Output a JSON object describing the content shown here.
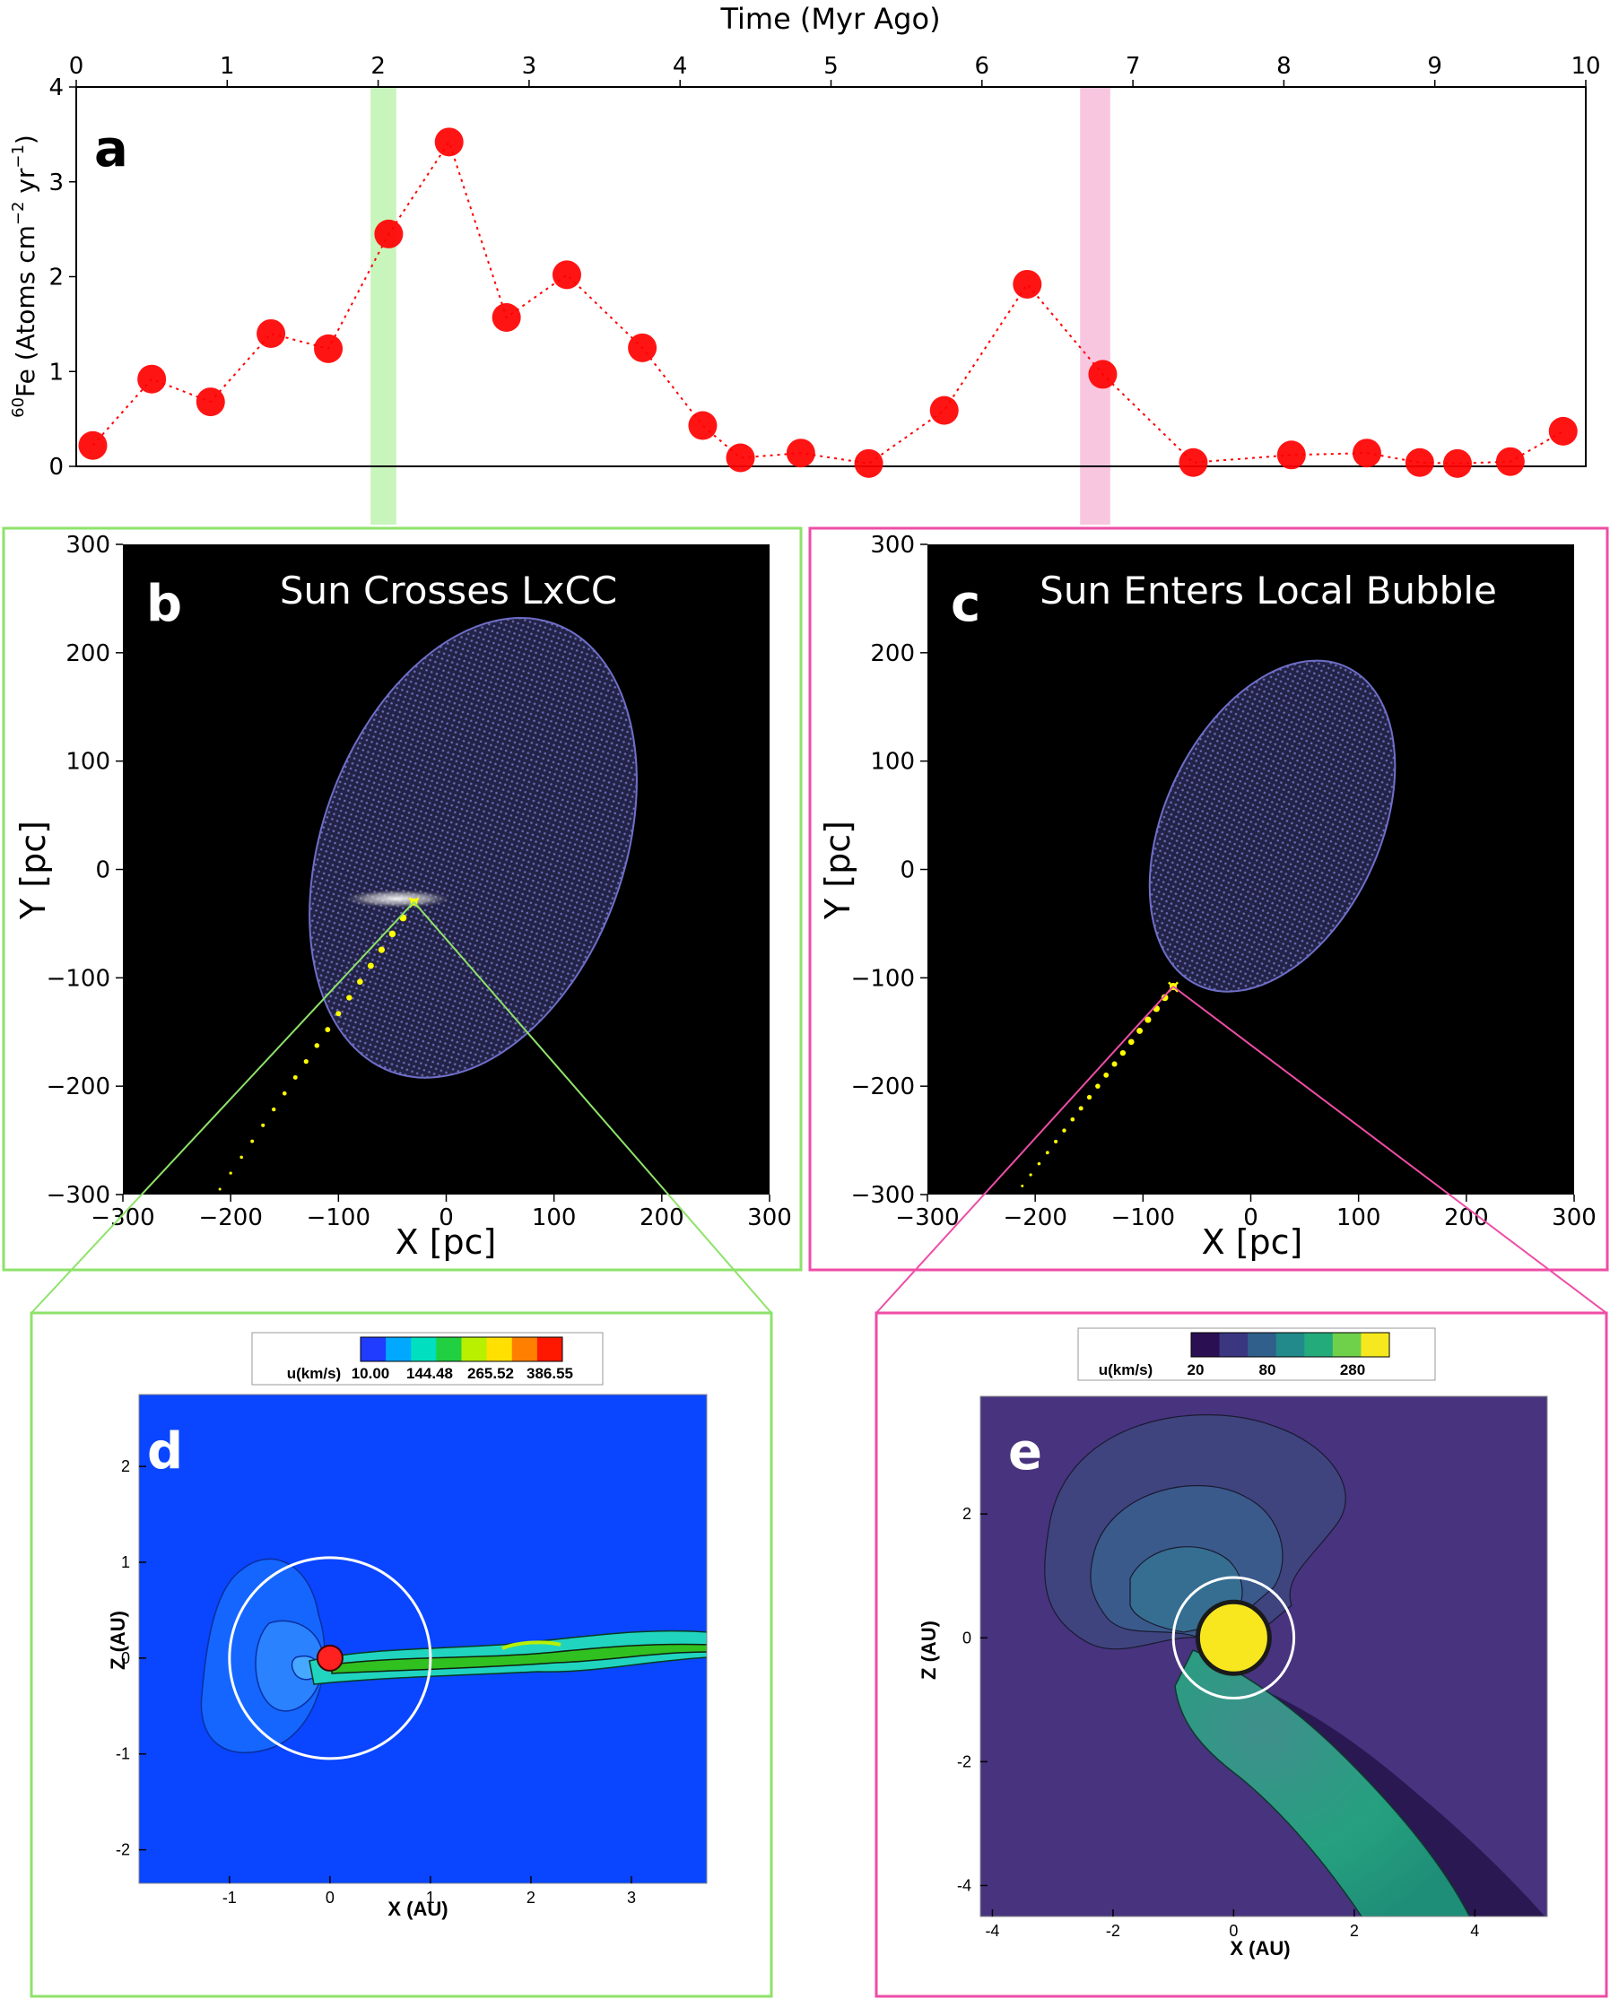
{
  "chart_data": [
    {
      "panel": "a",
      "type": "line",
      "title": "",
      "xlabel": "Time (Myr Ago)",
      "ylabel_iso": "60",
      "ylabel_main": "Fe (Atoms cm",
      "ylabel_exp1": "−2",
      "ylabel_mid": " yr",
      "ylabel_exp2": "−1",
      "ylabel_end": ")",
      "xlim": [
        0,
        10
      ],
      "ylim": [
        0,
        4
      ],
      "xticks": [
        "0",
        "1",
        "2",
        "3",
        "4",
        "5",
        "6",
        "7",
        "8",
        "9",
        "10"
      ],
      "yticks": [
        "0",
        "1",
        "2",
        "3",
        "4"
      ],
      "x": [
        0.11,
        0.5,
        0.89,
        1.29,
        1.67,
        2.07,
        2.47,
        2.85,
        3.25,
        3.75,
        4.15,
        4.4,
        4.8,
        5.25,
        5.75,
        6.3,
        6.8,
        7.4,
        8.05,
        8.55,
        8.9,
        9.15,
        9.5,
        9.85
      ],
      "values": [
        0.22,
        0.92,
        0.68,
        1.4,
        1.24,
        2.45,
        3.42,
        1.57,
        2.02,
        1.25,
        0.43,
        0.09,
        0.14,
        0.03,
        0.59,
        1.92,
        0.97,
        0.04,
        0.12,
        0.14,
        0.04,
        0.03,
        0.05,
        0.37
      ],
      "highlights": [
        {
          "x_from": 1.95,
          "x_to": 2.12,
          "color": "#b6f2a6"
        },
        {
          "x_from": 6.65,
          "x_to": 6.85,
          "color": "#f7b3d6"
        }
      ],
      "marker_color": "#ff0000",
      "line_style": "dotted"
    },
    {
      "panel": "b",
      "type": "scatter",
      "title": "Sun Crosses LxCC",
      "xlabel": "X [pc]",
      "ylabel": "Y [pc]",
      "xlim": [
        -300,
        300
      ],
      "ylim": [
        -300,
        300
      ],
      "xticks": [
        "−300",
        "−200",
        "−100",
        "0",
        "100",
        "200",
        "300"
      ],
      "yticks": [
        "−300",
        "−200",
        "−100",
        "0",
        "100",
        "200",
        "300"
      ],
      "bubble": {
        "cx": 25,
        "cy": 20,
        "rx": 140,
        "ry": 220,
        "angle_deg": 20,
        "color": "#3b3b78"
      },
      "trajectory": {
        "from": [
          -210,
          -295
        ],
        "to": [
          -30,
          -30
        ],
        "color": "#ffff00"
      },
      "sun_position": [
        -30,
        -30
      ],
      "frame_color": "#8ee26a"
    },
    {
      "panel": "c",
      "type": "scatter",
      "title": "Sun Enters Local Bubble",
      "xlabel": "X [pc]",
      "ylabel": "Y [pc]",
      "xlim": [
        -300,
        300
      ],
      "ylim": [
        -300,
        300
      ],
      "xticks": [
        "−300",
        "−200",
        "−100",
        "0",
        "100",
        "200",
        "300"
      ],
      "yticks": [
        "−300",
        "−200",
        "−100",
        "0",
        "100",
        "200",
        "300"
      ],
      "bubble": {
        "cx": 20,
        "cy": 40,
        "rx": 100,
        "ry": 162,
        "angle_deg": 25,
        "color": "#3b3b78"
      },
      "trajectory": {
        "from": [
          -212,
          -292
        ],
        "to": [
          -72,
          -108
        ],
        "color": "#ffff00"
      },
      "sun_position": [
        -72,
        -108
      ],
      "frame_color": "#ee4da6"
    },
    {
      "panel": "d",
      "type": "heatmap",
      "xlabel": "X (AU)",
      "ylabel": "Z (AU)",
      "xlim": [
        -1.9,
        3.75
      ],
      "ylim": [
        -2.35,
        2.75
      ],
      "xticks": [
        "-1",
        "0",
        "1",
        "2",
        "3"
      ],
      "yticks": [
        "-2",
        "-1",
        "0",
        "1",
        "2"
      ],
      "colorbar_label": "u(km/s)",
      "colorbar_ticks": [
        "10.00",
        "144.48",
        "265.52",
        "386.55"
      ],
      "colorbar_colors": [
        "#1f3cff",
        "#00a8ff",
        "#00e0c0",
        "#20d040",
        "#b8f000",
        "#ffe000",
        "#ff8000",
        "#ff1800"
      ],
      "background_color": "#0a45ff",
      "reference_circle_radius_au": 1.0,
      "frame_color": "#8ee26a"
    },
    {
      "panel": "e",
      "type": "heatmap",
      "xlabel": "X (AU)",
      "ylabel": "Z (AU)",
      "xlim": [
        -4.2,
        5.2
      ],
      "ylim": [
        -4.5,
        3.9
      ],
      "xticks": [
        "-4",
        "-2",
        "0",
        "2",
        "4"
      ],
      "yticks": [
        "-4",
        "-2",
        "0",
        "2"
      ],
      "colorbar_label": "u(km/s)",
      "colorbar_ticks": [
        "20",
        "80",
        "280"
      ],
      "colorbar_colors": [
        "#2a0f52",
        "#3a3680",
        "#2f5f8a",
        "#228a8a",
        "#24ab7c",
        "#6fd04a",
        "#f6e81e"
      ],
      "background_color": "#48337f",
      "reference_circle_radius_au": 1.0,
      "frame_color": "#ee4da6"
    }
  ]
}
